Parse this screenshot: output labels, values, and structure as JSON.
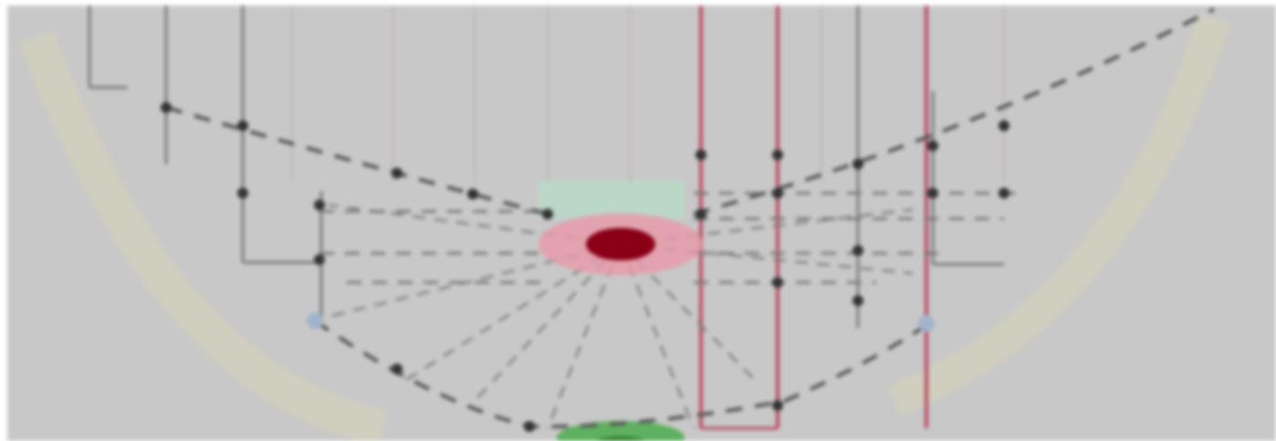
{
  "diagram": {
    "colors": {
      "background": "#c8c8c8",
      "dashed_curve": "#555555",
      "vertical_lines": "#b84a60",
      "grid_lines": "#7a7a7a",
      "center_blob": "#8a0016",
      "center_glow": "#e89aa8",
      "top_patch": "#b9d8c8",
      "bottom_patch": "#5fb060",
      "left_fade": "#d6d2b8",
      "blue_marker": "#9fb4cc"
    },
    "caption_lines": []
  }
}
